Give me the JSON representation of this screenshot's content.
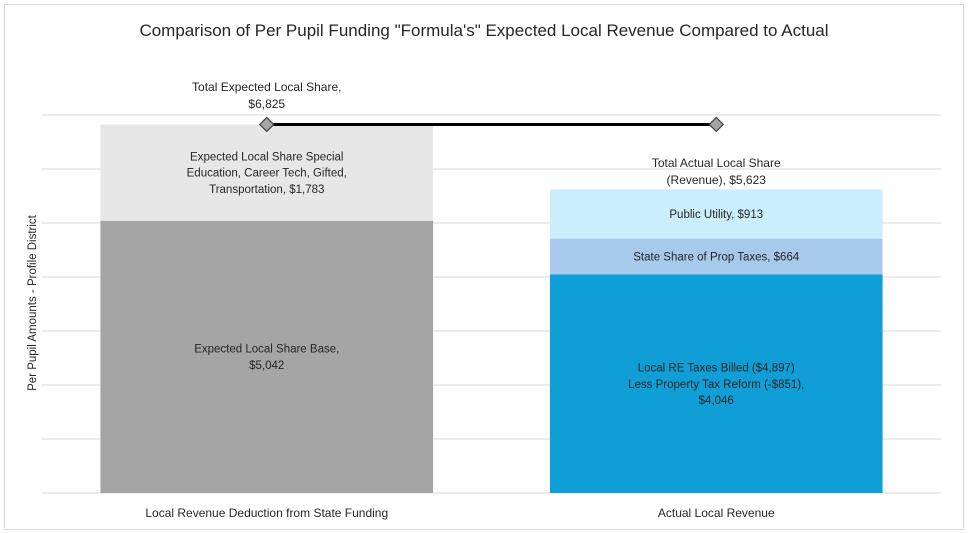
{
  "chart_data": {
    "type": "bar",
    "stacked": true,
    "title": "Comparison of Per Pupil Funding \"Formula's\" Expected Local Revenue Compared to Actual",
    "xlabel": "",
    "ylabel": "Per Pupil Amounts - Profile District",
    "ylim": [
      0,
      7000
    ],
    "ytick_step": 1000,
    "grid": true,
    "legend": "none",
    "categories": [
      "Local Revenue Deduction from State Funding",
      "Actual Local Revenue"
    ],
    "series": [
      {
        "name": "Expected Local Share Base",
        "category": 0,
        "value": 5042,
        "color": "#A5A5A5",
        "label_lines": [
          "Expected Local Share Base,",
          "$5,042"
        ]
      },
      {
        "name": "Expected Local Share Special Education, Career Tech, Gifted, Transportation",
        "category": 0,
        "value": 1783,
        "color": "#E7E7E7",
        "label_lines": [
          "Expected Local Share Special",
          "Education, Career Tech, Gifted,",
          "Transportation, $1,783"
        ]
      },
      {
        "name": "Local RE Taxes Billed ($4,897) Less Property Tax Reform (-$851)",
        "category": 1,
        "value": 4046,
        "color": "#0F9ED5",
        "label_lines": [
          "Local RE Taxes Billed ($4,897)",
          "Less Property Tax Reform (-$851),",
          "$4,046"
        ]
      },
      {
        "name": "State Share of Prop Taxes",
        "category": 1,
        "value": 664,
        "color": "#A6C9EC",
        "label_lines": [
          "State Share of Prop Taxes, $664"
        ]
      },
      {
        "name": "Public Utility",
        "category": 1,
        "value": 913,
        "color": "#CAEEFB",
        "label_lines": [
          "Public Utility, $913"
        ]
      }
    ],
    "line_series": {
      "name": "Total Expected Local Share",
      "values": [
        6825,
        6825
      ],
      "color": "#000000",
      "marker_color": "#A5A5A5",
      "label_lines": [
        "Total Expected Local Share,",
        "$6,825"
      ]
    },
    "totals": [
      {
        "category": 1,
        "value": 5623,
        "label_lines": [
          "Total Actual Local Share",
          "(Revenue), $5,623"
        ]
      }
    ]
  }
}
